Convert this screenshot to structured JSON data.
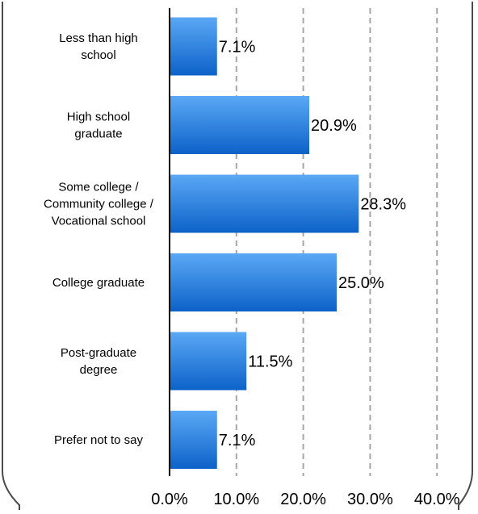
{
  "chart_data": {
    "type": "bar",
    "orientation": "horizontal",
    "categories": [
      [
        "Less than high",
        "school"
      ],
      [
        "High school",
        "graduate"
      ],
      [
        "Some college /",
        "Community college /",
        "Vocational school"
      ],
      [
        "College graduate"
      ],
      [
        "Post-graduate",
        "degree"
      ],
      [
        "Prefer not to say"
      ]
    ],
    "values": [
      7.1,
      20.9,
      28.3,
      25.0,
      11.5,
      7.1
    ],
    "value_labels": [
      "7.1%",
      "20.9%",
      "28.3%",
      "25.0%",
      "11.5%",
      "7.1%"
    ],
    "xlim": [
      0,
      40
    ],
    "xticks": [
      "0.0%",
      "10.0%",
      "20.0%",
      "30.0%",
      "40.0%"
    ],
    "grid": "vertical dashed",
    "bar_color_top": "#5aa8f5",
    "bar_color_bottom": "#0d62c8",
    "frame_color": "#4a4a4a",
    "grid_color": "#a6a6a6"
  }
}
